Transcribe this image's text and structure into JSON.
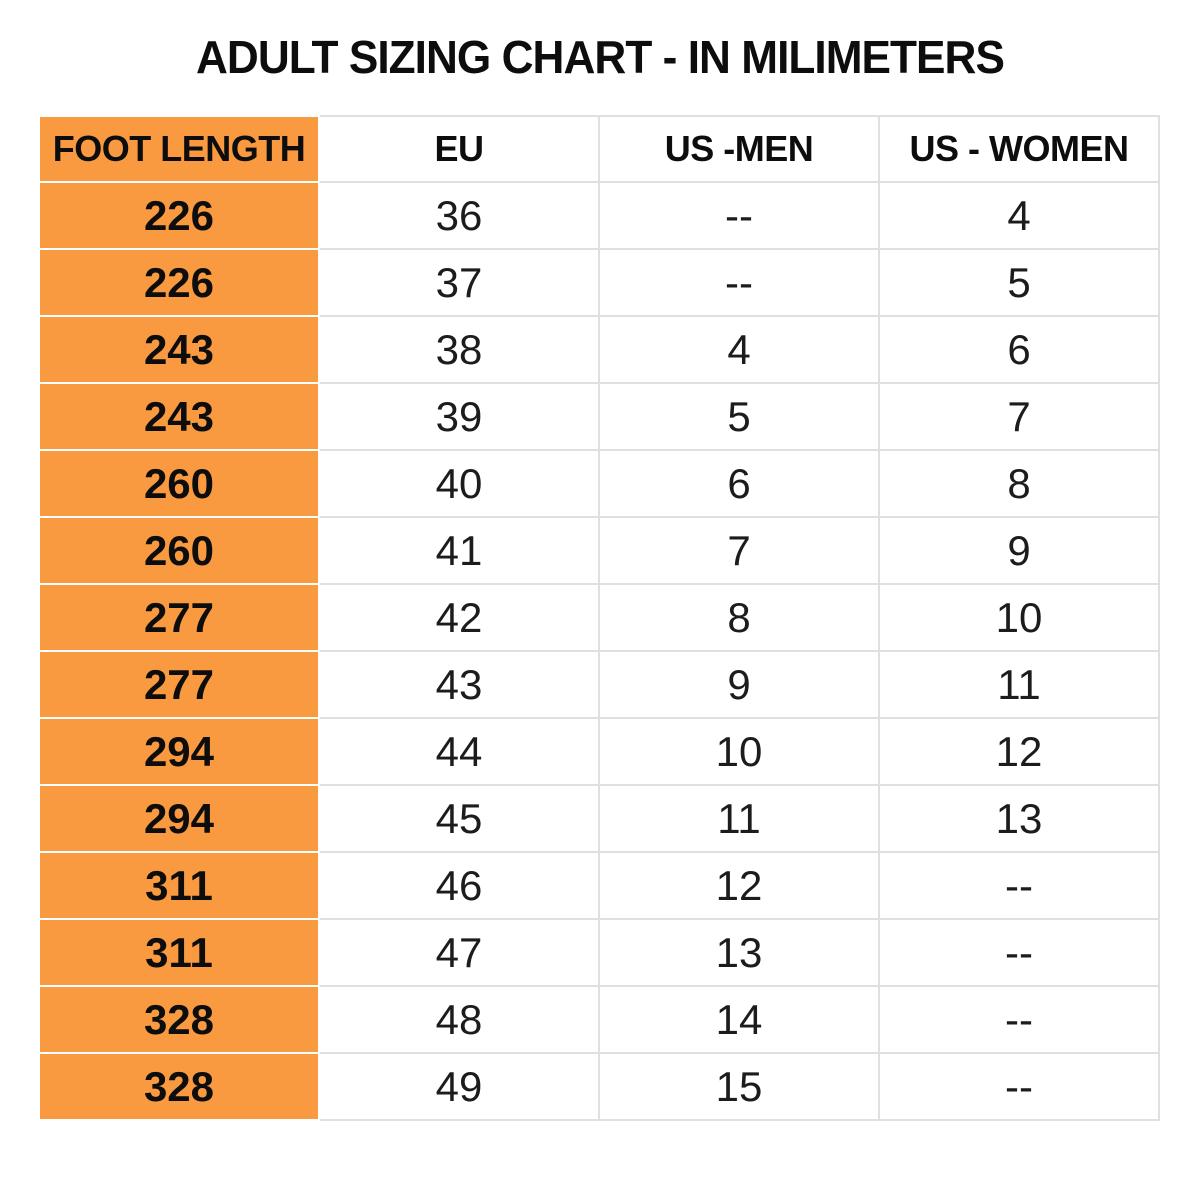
{
  "page": {
    "title": "ADULT SIZING CHART - IN MILIMETERS"
  },
  "colors": {
    "highlight_orange": "#F99A40",
    "grid_line": "#e0e0e0",
    "text": "#111111",
    "background": "#ffffff"
  },
  "table": {
    "headers": [
      "FOOT LENGTH",
      "EU",
      "US -MEN",
      "US - WOMEN"
    ],
    "rows": [
      [
        "226",
        "36",
        "--",
        "4"
      ],
      [
        "226",
        "37",
        "--",
        "5"
      ],
      [
        "243",
        "38",
        "4",
        "6"
      ],
      [
        "243",
        "39",
        "5",
        "7"
      ],
      [
        "260",
        "40",
        "6",
        "8"
      ],
      [
        "260",
        "41",
        "7",
        "9"
      ],
      [
        "277",
        "42",
        "8",
        "10"
      ],
      [
        "277",
        "43",
        "9",
        "11"
      ],
      [
        "294",
        "44",
        "10",
        "12"
      ],
      [
        "294",
        "45",
        "11",
        "13"
      ],
      [
        "311",
        "46",
        "12",
        "--"
      ],
      [
        "311",
        "47",
        "13",
        "--"
      ],
      [
        "328",
        "48",
        "14",
        "--"
      ],
      [
        "328",
        "49",
        "15",
        "--"
      ]
    ]
  },
  "chart_data": {
    "type": "table",
    "title": "ADULT SIZING CHART - IN MILIMETERS",
    "columns": [
      "FOOT LENGTH",
      "EU",
      "US -MEN",
      "US - WOMEN"
    ],
    "rows": [
      [
        "226",
        "36",
        "--",
        "4"
      ],
      [
        "226",
        "37",
        "--",
        "5"
      ],
      [
        "243",
        "38",
        "4",
        "6"
      ],
      [
        "243",
        "39",
        "5",
        "7"
      ],
      [
        "260",
        "40",
        "6",
        "8"
      ],
      [
        "260",
        "41",
        "7",
        "9"
      ],
      [
        "277",
        "42",
        "8",
        "10"
      ],
      [
        "277",
        "43",
        "9",
        "11"
      ],
      [
        "294",
        "44",
        "10",
        "12"
      ],
      [
        "294",
        "45",
        "11",
        "13"
      ],
      [
        "311",
        "46",
        "12",
        "--"
      ],
      [
        "311",
        "47",
        "13",
        "--"
      ],
      [
        "328",
        "48",
        "14",
        "--"
      ],
      [
        "328",
        "49",
        "15",
        "--"
      ]
    ],
    "layout_hints": {
      "first_column_highlight_color": "#F99A40",
      "header_row_bold": true,
      "all_cells_centered": true
    }
  }
}
